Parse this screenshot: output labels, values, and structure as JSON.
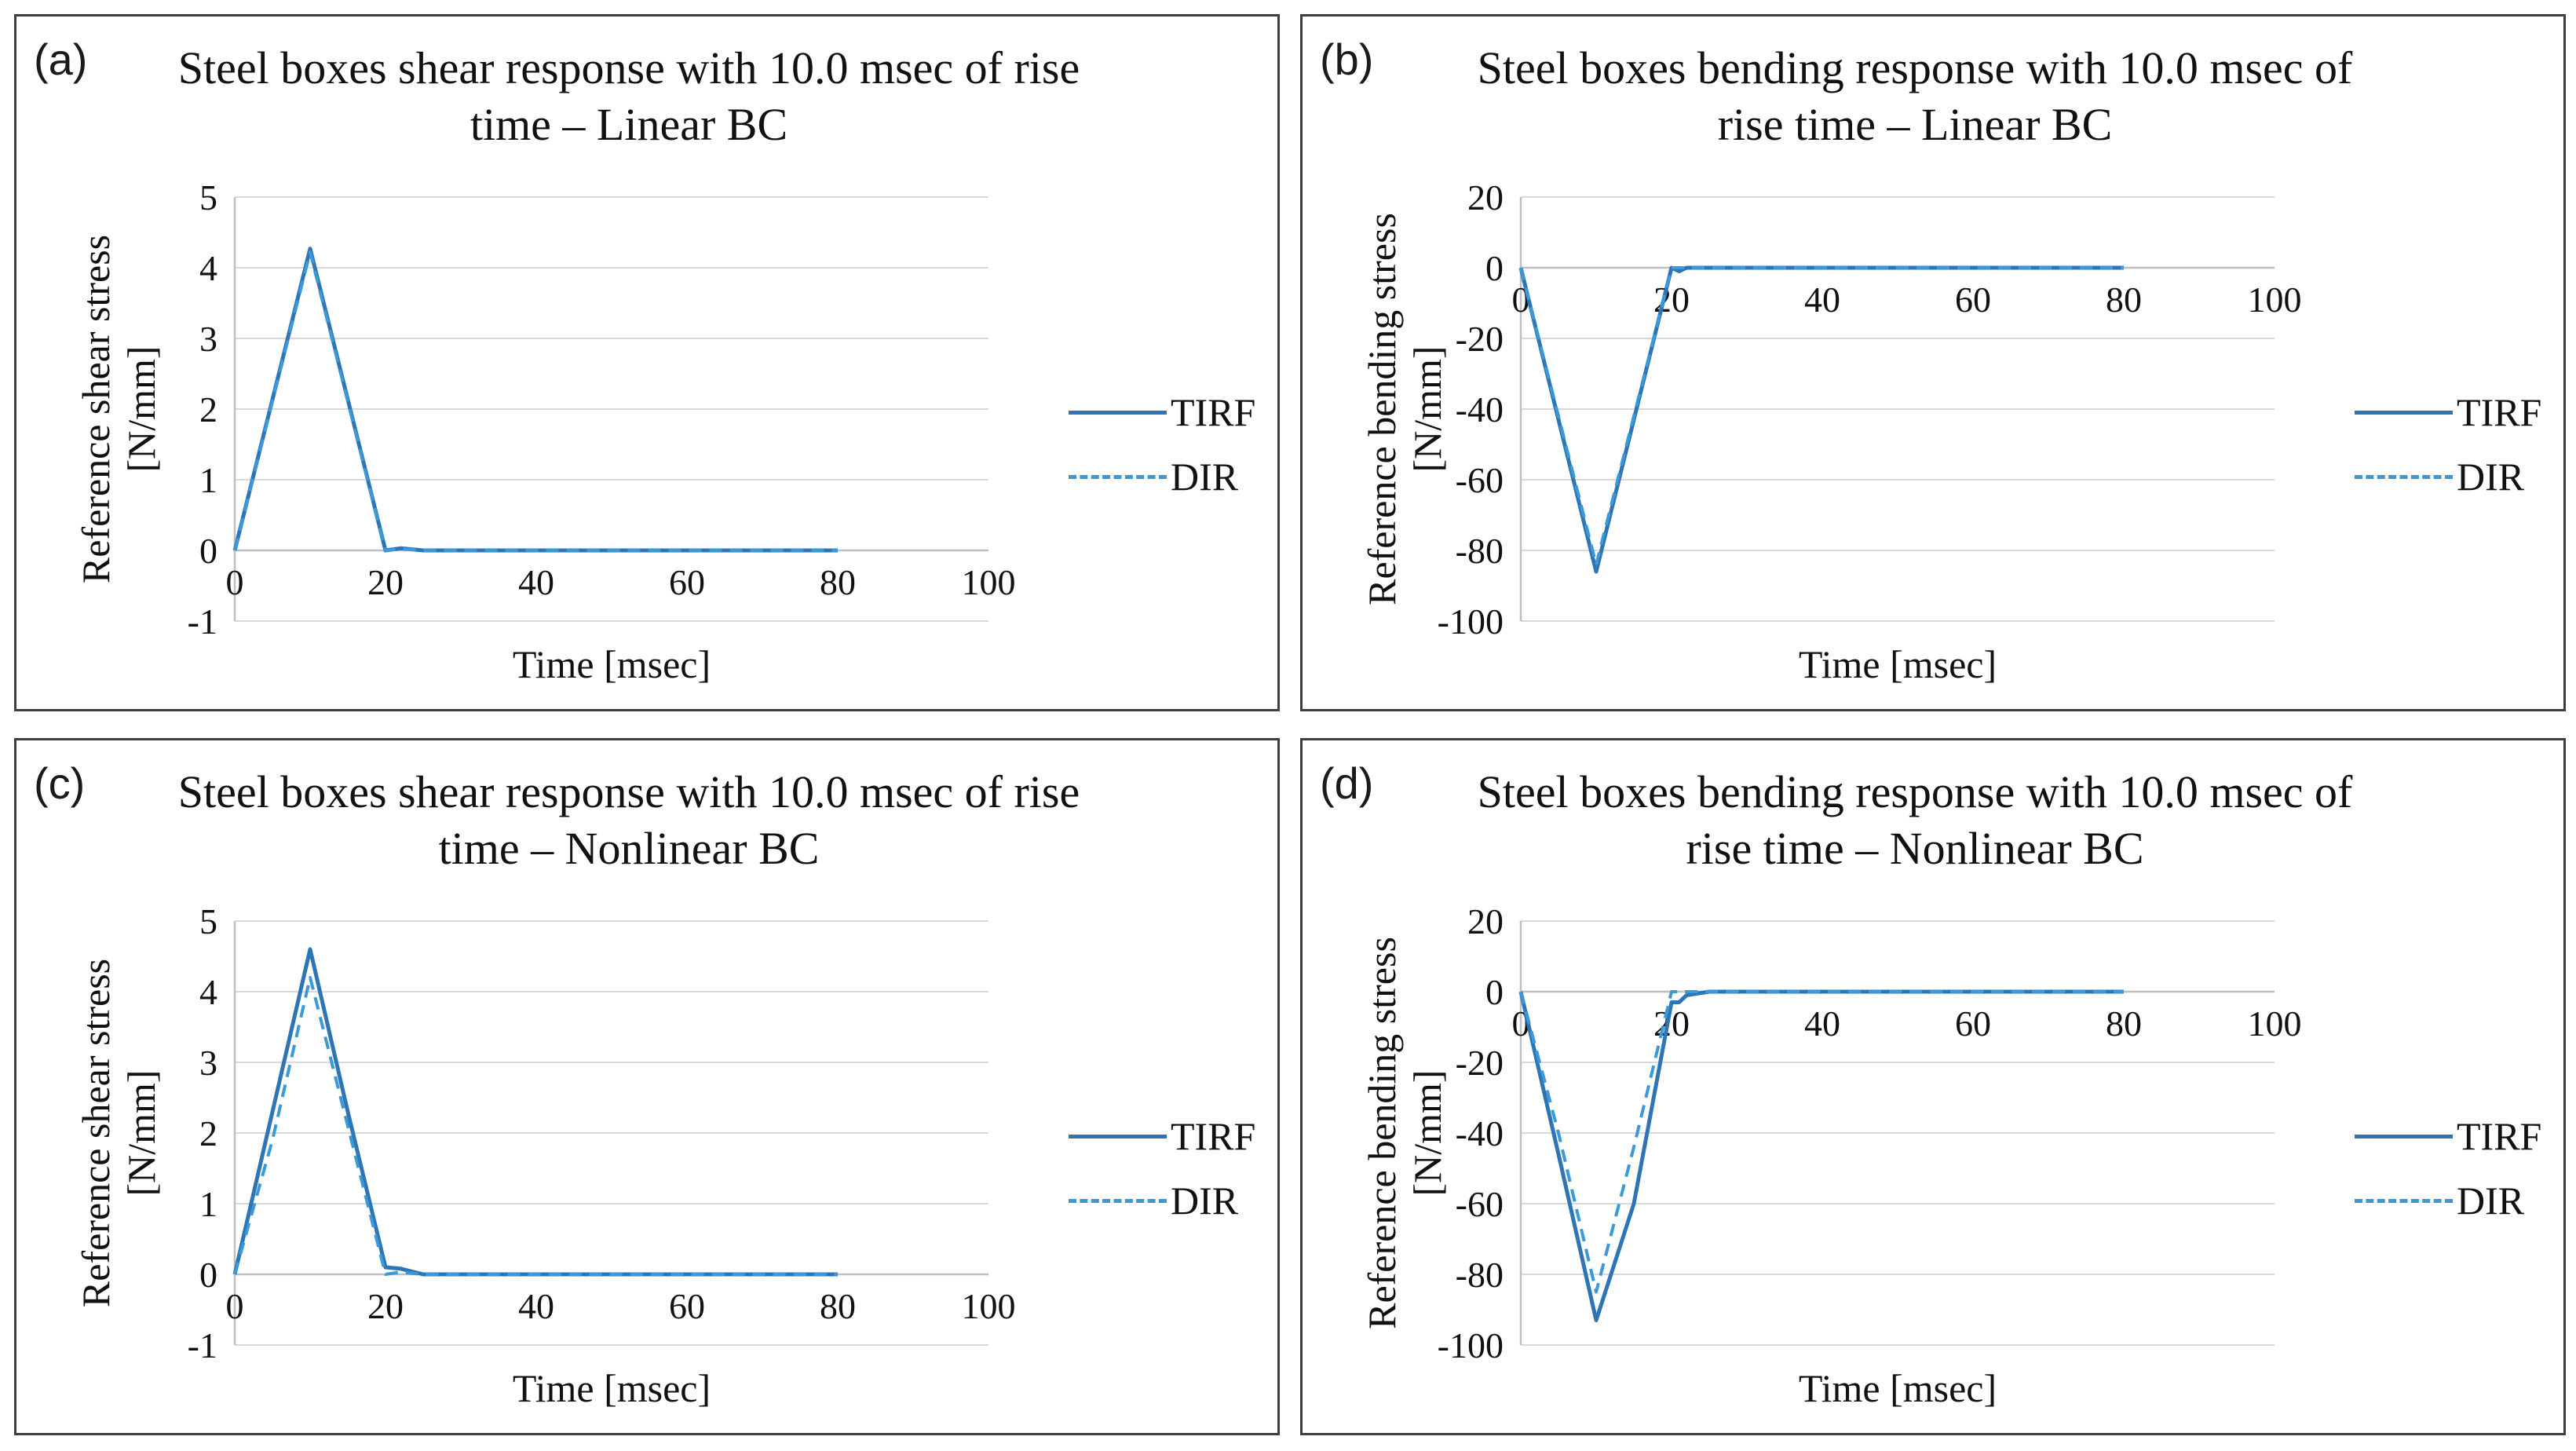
{
  "panels": [
    {
      "letter": "(a)",
      "title_line1": "Steel boxes shear response with 10.0 msec of rise",
      "title_line2": "time – Linear BC"
    },
    {
      "letter": "(b)",
      "title_line1": "Steel boxes bending response with 10.0 msec of",
      "title_line2": "rise time – Linear BC"
    },
    {
      "letter": "(c)",
      "title_line1": "Steel boxes shear response with 10.0 msec of rise",
      "title_line2": "time – Nonlinear BC"
    },
    {
      "letter": "(d)",
      "title_line1": "Steel boxes bending response with 10.0 msec of",
      "title_line2": "rise time – Nonlinear BC"
    }
  ],
  "legend": {
    "tirf": "TIRF",
    "dir": "DIR"
  },
  "colors": {
    "tirf": "#2e75b6",
    "dir": "#3a9ad9",
    "grid": "#d9d9d9",
    "axis": "#bfbfbf",
    "border": "#3f3f3f"
  },
  "chart_data": [
    {
      "type": "line",
      "title": "Steel boxes shear response with 10.0 msec of rise time – Linear BC",
      "xlabel": "Time [msec]",
      "ylabel": "Reference shear stress [N/mm]",
      "xlim": [
        0,
        100
      ],
      "ylim": [
        -1,
        5
      ],
      "xticks": [
        0,
        20,
        40,
        60,
        80,
        100
      ],
      "yticks": [
        -1,
        0,
        1,
        2,
        3,
        4,
        5
      ],
      "grid": true,
      "legend_position": "right",
      "series": [
        {
          "name": "TIRF",
          "style": "solid",
          "x": [
            0,
            10,
            20,
            22,
            25,
            30,
            40,
            50,
            60,
            70,
            80
          ],
          "y": [
            0,
            4.27,
            0,
            0.03,
            0,
            0,
            0,
            0,
            0,
            0,
            0
          ]
        },
        {
          "name": "DIR",
          "style": "dashed",
          "x": [
            0,
            10,
            20,
            22,
            25,
            30,
            40,
            50,
            60,
            70,
            80
          ],
          "y": [
            0,
            4.22,
            0,
            0.02,
            0,
            0,
            0,
            0,
            0,
            0,
            0
          ]
        }
      ]
    },
    {
      "type": "line",
      "title": "Steel boxes bending response with 10.0 msec of rise time – Linear BC",
      "xlabel": "Time [msec]",
      "ylabel": "Reference bending stress [N/mm]",
      "xlim": [
        0,
        100
      ],
      "ylim": [
        -100,
        20
      ],
      "xticks": [
        0,
        20,
        40,
        60,
        80,
        100
      ],
      "yticks": [
        -100,
        -80,
        -60,
        -40,
        -20,
        0,
        20
      ],
      "grid": true,
      "legend_position": "right",
      "series": [
        {
          "name": "TIRF",
          "style": "solid",
          "x": [
            0,
            10,
            20,
            21,
            22,
            25,
            30,
            40,
            50,
            60,
            70,
            80
          ],
          "y": [
            0,
            -86,
            0,
            -1,
            0,
            0,
            0,
            0,
            0,
            0,
            0,
            0
          ]
        },
        {
          "name": "DIR",
          "style": "dashed",
          "x": [
            0,
            10,
            20,
            22,
            25,
            30,
            40,
            50,
            60,
            70,
            80
          ],
          "y": [
            0,
            -84,
            0,
            0,
            0,
            0,
            0,
            0,
            0,
            0,
            0
          ]
        }
      ]
    },
    {
      "type": "line",
      "title": "Steel boxes shear response with 10.0 msec of rise time – Nonlinear BC",
      "xlabel": "Time [msec]",
      "ylabel": "Reference shear stress [N/mm]",
      "xlim": [
        0,
        100
      ],
      "ylim": [
        -1,
        5
      ],
      "xticks": [
        0,
        20,
        40,
        60,
        80,
        100
      ],
      "yticks": [
        -1,
        0,
        1,
        2,
        3,
        4,
        5
      ],
      "grid": true,
      "legend_position": "right",
      "series": [
        {
          "name": "TIRF",
          "style": "solid",
          "x": [
            0,
            5,
            10,
            15,
            20,
            22,
            25,
            30,
            40,
            50,
            60,
            70,
            80
          ],
          "y": [
            0,
            2.3,
            4.6,
            2.3,
            0.1,
            0.08,
            0,
            0,
            0,
            0,
            0,
            0,
            0
          ]
        },
        {
          "name": "DIR",
          "style": "dashed",
          "x": [
            0,
            5,
            10,
            15,
            20,
            22,
            25,
            30,
            40,
            50,
            60,
            70,
            80
          ],
          "y": [
            0,
            1.9,
            4.2,
            2.1,
            0,
            0.03,
            0,
            0,
            0,
            0,
            0,
            0,
            0
          ]
        }
      ]
    },
    {
      "type": "line",
      "title": "Steel boxes bending response with 10.0 msec of rise time – Nonlinear BC",
      "xlabel": "Time [msec]",
      "ylabel": "Reference bending stress [N/mm]",
      "xlim": [
        0,
        100
      ],
      "ylim": [
        -100,
        20
      ],
      "xticks": [
        0,
        20,
        40,
        60,
        80,
        100
      ],
      "yticks": [
        -100,
        -80,
        -60,
        -40,
        -20,
        0,
        20
      ],
      "grid": true,
      "legend_position": "right",
      "series": [
        {
          "name": "TIRF",
          "style": "solid",
          "x": [
            0,
            5,
            10,
            15,
            20,
            21,
            22,
            25,
            30,
            40,
            50,
            60,
            70,
            80
          ],
          "y": [
            0,
            -46,
            -93,
            -60,
            -3,
            -3,
            -1,
            0,
            0,
            0,
            0,
            0,
            0,
            0
          ]
        },
        {
          "name": "DIR",
          "style": "dashed",
          "x": [
            0,
            5,
            10,
            15,
            20,
            22,
            25,
            30,
            40,
            50,
            60,
            70,
            80
          ],
          "y": [
            0,
            -40,
            -85,
            -44,
            0,
            0,
            0,
            0,
            0,
            0,
            0,
            0,
            0
          ]
        }
      ]
    }
  ]
}
